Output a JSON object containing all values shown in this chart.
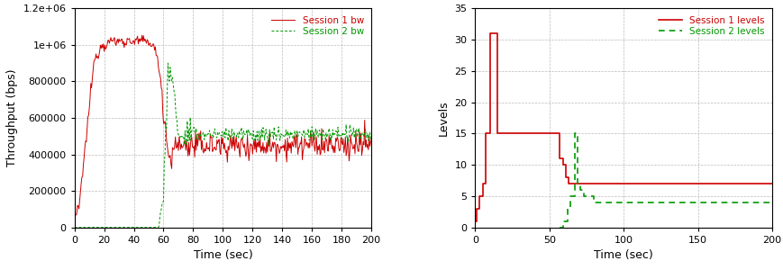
{
  "left_plot": {
    "xlabel": "Time (sec)",
    "ylabel": "Throughput (bps)",
    "xlim": [
      0,
      200
    ],
    "ylim": [
      0,
      1200000
    ],
    "yticks": [
      0,
      200000,
      400000,
      600000,
      800000,
      1000000,
      1200000
    ],
    "xticks": [
      0,
      20,
      40,
      60,
      80,
      100,
      120,
      140,
      160,
      180,
      200
    ],
    "session1_color": "#cc0000",
    "session2_color": "#009900",
    "legend_labels": [
      "Session 1 bw",
      "Session 2 bw"
    ]
  },
  "right_plot": {
    "xlabel": "Time (sec)",
    "ylabel": "Levels",
    "xlim": [
      0,
      200
    ],
    "ylim": [
      0,
      35
    ],
    "yticks": [
      0,
      5,
      10,
      15,
      20,
      25,
      30,
      35
    ],
    "xticks": [
      0,
      50,
      100,
      150,
      200
    ],
    "session1_color": "#cc0000",
    "session2_color": "#009900",
    "legend_labels": [
      "Session 1 levels",
      "Session 2 levels"
    ],
    "session1_x": [
      0,
      1,
      1,
      3,
      3,
      5,
      5,
      7,
      7,
      10,
      10,
      15,
      15,
      57,
      57,
      59,
      59,
      61,
      61,
      63,
      63,
      68,
      68,
      72,
      72,
      200
    ],
    "session1_y": [
      1,
      1,
      3,
      3,
      5,
      5,
      7,
      7,
      15,
      15,
      31,
      31,
      15,
      15,
      11,
      11,
      10,
      10,
      8,
      8,
      7,
      7,
      7,
      7,
      7,
      7
    ],
    "session2_x": [
      57,
      59,
      59,
      62,
      62,
      64,
      64,
      67,
      67,
      69,
      69,
      71,
      71,
      73,
      73,
      80,
      80,
      88,
      88,
      200
    ],
    "session2_y": [
      0,
      0,
      1,
      1,
      3,
      3,
      5,
      5,
      15,
      15,
      7,
      7,
      6,
      6,
      5,
      5,
      4,
      4,
      4,
      4
    ]
  },
  "bg_color": "#ffffff",
  "grid_color": "#aaaaaa",
  "grid_style": "--"
}
